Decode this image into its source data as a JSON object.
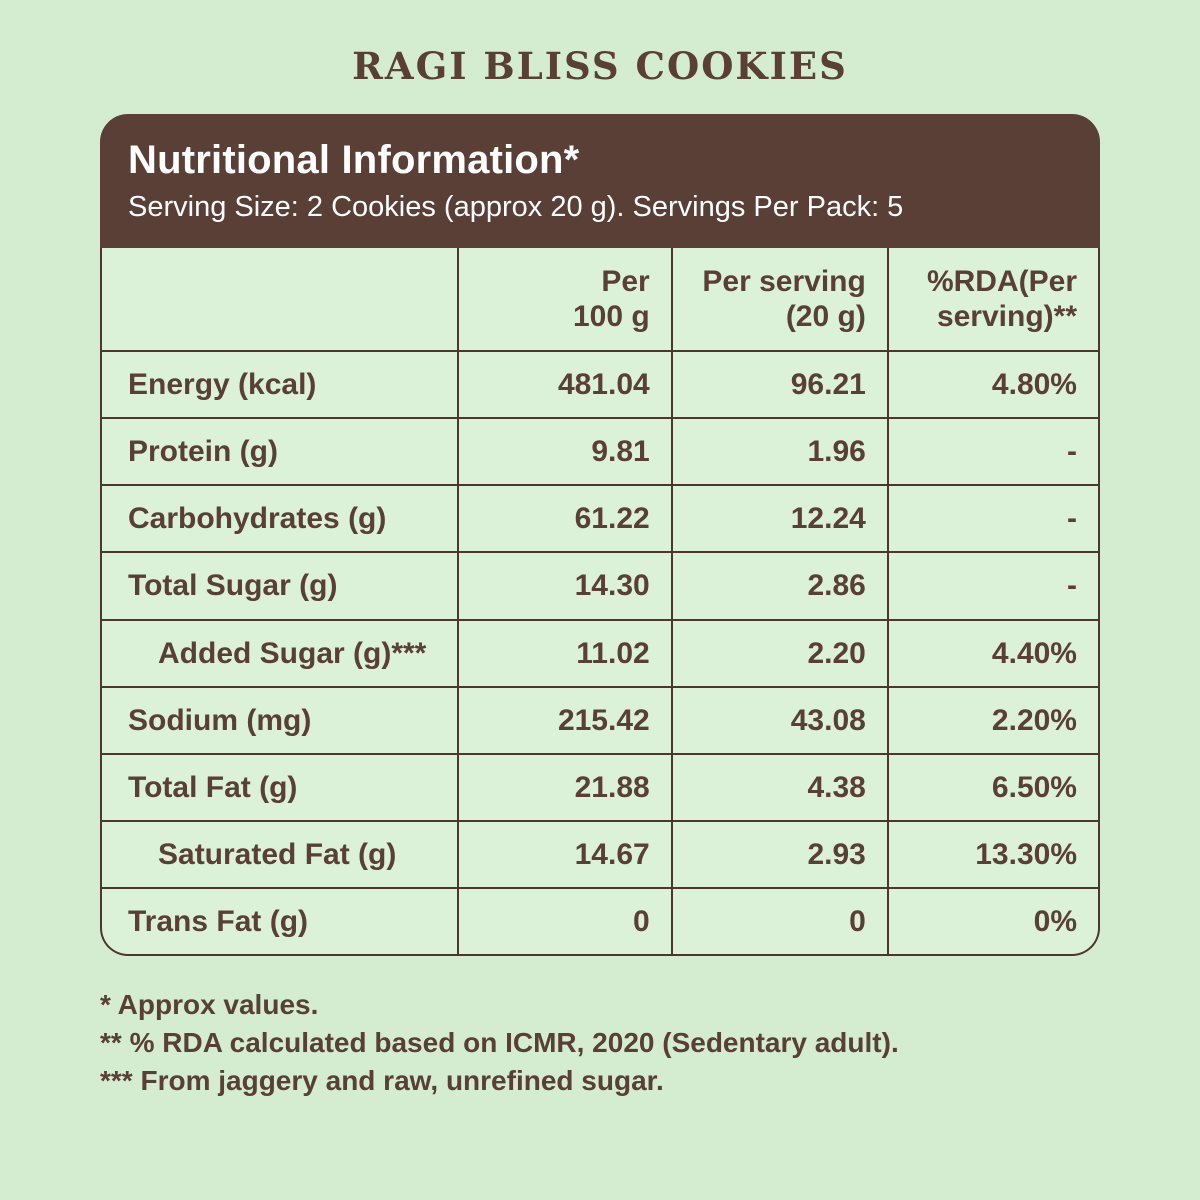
{
  "page": {
    "title": "RAGI BLISS COOKIES",
    "colors": {
      "background": "#d4edd1",
      "panel_brown": "#593f35",
      "border_brown": "#4f362d",
      "cell_green": "#dbf2d8",
      "text_brown": "#593f35",
      "header_text": "#ffffff"
    }
  },
  "panel": {
    "heading": "Nutritional Information*",
    "serving_line": "Serving Size: 2 Cookies (approx 20 g). Servings Per Pack: 5"
  },
  "table": {
    "columns": [
      "",
      "Per\n100 g",
      "Per serving\n(20 g)",
      "%RDA(Per\nserving)**"
    ],
    "rows": [
      {
        "label": "Energy (kcal)",
        "per_100g": "481.04",
        "per_serving": "96.21",
        "rda": "4.80%",
        "indent": false
      },
      {
        "label": "Protein (g)",
        "per_100g": "9.81",
        "per_serving": "1.96",
        "rda": "-",
        "indent": false
      },
      {
        "label": "Carbohydrates (g)",
        "per_100g": "61.22",
        "per_serving": "12.24",
        "rda": "-",
        "indent": false
      },
      {
        "label": "Total Sugar (g)",
        "per_100g": "14.30",
        "per_serving": "2.86",
        "rda": "-",
        "indent": false
      },
      {
        "label": "Added Sugar (g)***",
        "per_100g": "11.02",
        "per_serving": "2.20",
        "rda": "4.40%",
        "indent": true
      },
      {
        "label": "Sodium (mg)",
        "per_100g": "215.42",
        "per_serving": "43.08",
        "rda": "2.20%",
        "indent": false
      },
      {
        "label": "Total Fat (g)",
        "per_100g": "21.88",
        "per_serving": "4.38",
        "rda": "6.50%",
        "indent": false
      },
      {
        "label": "Saturated Fat (g)",
        "per_100g": "14.67",
        "per_serving": "2.93",
        "rda": "13.30%",
        "indent": true
      },
      {
        "label": "Trans Fat (g)",
        "per_100g": "0",
        "per_serving": "0",
        "rda": "0%",
        "indent": false
      }
    ]
  },
  "footnotes": [
    "* Approx values.",
    "** % RDA calculated based on ICMR, 2020 (Sedentary adult).",
    "*** From jaggery and raw, unrefined sugar."
  ]
}
